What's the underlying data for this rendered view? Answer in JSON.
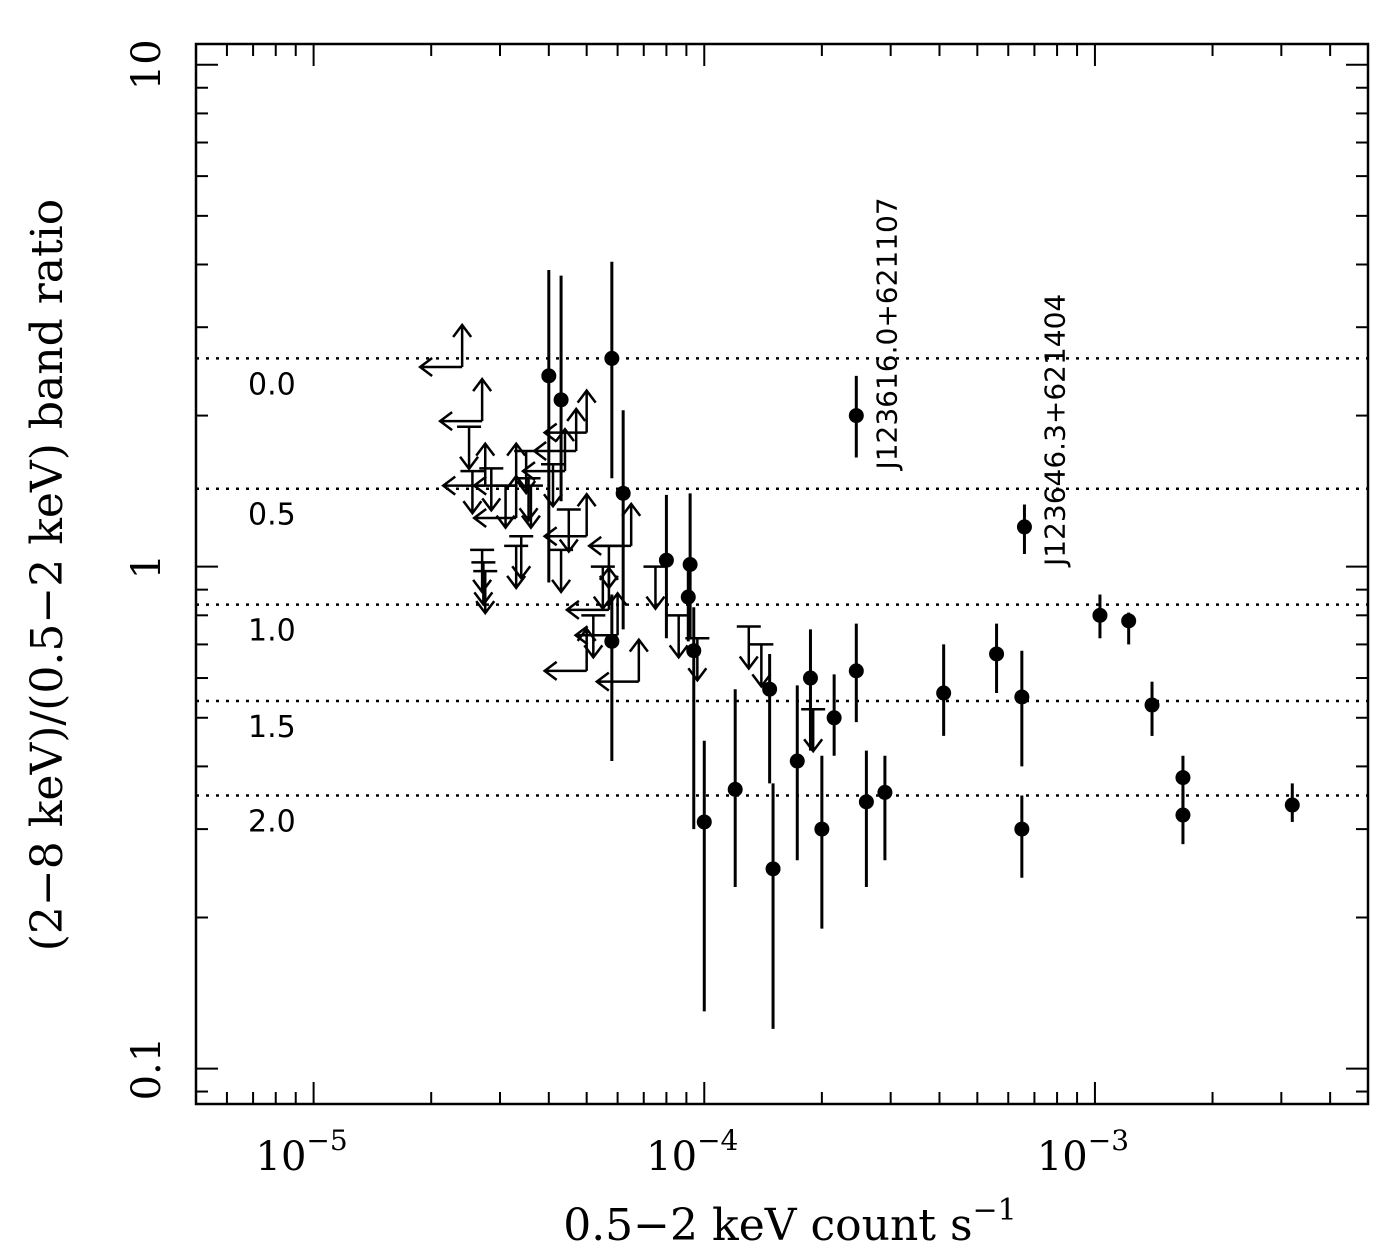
{
  "chart_data": {
    "type": "scatter",
    "title": "",
    "xlabel": "0.5−2 keV count s",
    "xlabel_sup": "−1",
    "ylabel": "(2−8 keV)/(0.5−2 keV) band ratio",
    "xscale": "log",
    "yscale": "log",
    "xlim": [
      5e-06,
      0.005
    ],
    "ylim": [
      0.085,
      11
    ],
    "x_ticks": [
      {
        "value": 1e-05,
        "base": "10",
        "exp": "−5"
      },
      {
        "value": 0.0001,
        "base": "10",
        "exp": "−4"
      },
      {
        "value": 0.001,
        "base": "10",
        "exp": "−3"
      }
    ],
    "y_ticks": [
      {
        "value": 0.1,
        "label": "0.1"
      },
      {
        "value": 1,
        "label": "1"
      },
      {
        "value": 10,
        "label": "10"
      }
    ],
    "photon_index_lines": [
      {
        "label": "0.0",
        "ratio": 2.6
      },
      {
        "label": "0.5",
        "ratio": 1.43
      },
      {
        "label": "1.0",
        "ratio": 0.84
      },
      {
        "label": "1.5",
        "ratio": 0.54
      },
      {
        "label": "2.0",
        "ratio": 0.35
      }
    ],
    "detections": [
      {
        "x": 4e-05,
        "y": 2.4,
        "ylo": 0.93,
        "yhi": 3.9
      },
      {
        "x": 4.3e-05,
        "y": 2.15,
        "ylo": 1.35,
        "yhi": 3.8
      },
      {
        "x": 5.8e-05,
        "y": 2.6,
        "ylo": 1.5,
        "yhi": 4.05
      },
      {
        "x": 6.2e-05,
        "y": 1.4,
        "ylo": 0.75,
        "yhi": 2.05
      },
      {
        "x": 8e-05,
        "y": 1.03,
        "ylo": 0.72,
        "yhi": 1.39
      },
      {
        "x": 9.2e-05,
        "y": 1.01,
        "ylo": 0.72,
        "yhi": 1.4
      },
      {
        "x": 9.1e-05,
        "y": 0.87,
        "ylo": 0.71,
        "yhi": 0.98
      },
      {
        "x": 5.8e-05,
        "y": 0.71,
        "ylo": 0.41,
        "yhi": 0.88
      },
      {
        "x": 9.4e-05,
        "y": 0.68,
        "ylo": 0.3,
        "yhi": 0.83
      },
      {
        "x": 0.0001,
        "y": 0.31,
        "ylo": 0.13,
        "yhi": 0.45
      },
      {
        "x": 0.00012,
        "y": 0.36,
        "ylo": 0.23,
        "yhi": 0.57
      },
      {
        "x": 0.000147,
        "y": 0.57,
        "ylo": 0.37,
        "yhi": 0.67
      },
      {
        "x": 0.00015,
        "y": 0.25,
        "ylo": 0.12,
        "yhi": 0.37
      },
      {
        "x": 0.000173,
        "y": 0.41,
        "ylo": 0.26,
        "yhi": 0.58
      },
      {
        "x": 0.000187,
        "y": 0.6,
        "ylo": 0.43,
        "yhi": 0.75
      },
      {
        "x": 0.0002,
        "y": 0.3,
        "ylo": 0.19,
        "yhi": 0.42
      },
      {
        "x": 0.000215,
        "y": 0.5,
        "ylo": 0.42,
        "yhi": 0.61
      },
      {
        "x": 0.000245,
        "y": 0.62,
        "ylo": 0.49,
        "yhi": 0.77
      },
      {
        "x": 0.00026,
        "y": 0.34,
        "ylo": 0.23,
        "yhi": 0.43
      },
      {
        "x": 0.00029,
        "y": 0.355,
        "ylo": 0.26,
        "yhi": 0.42
      },
      {
        "x": 0.00041,
        "y": 0.56,
        "ylo": 0.46,
        "yhi": 0.7
      },
      {
        "x": 0.00056,
        "y": 0.67,
        "ylo": 0.56,
        "yhi": 0.77
      },
      {
        "x": 0.00065,
        "y": 0.55,
        "ylo": 0.4,
        "yhi": 0.68
      },
      {
        "x": 0.00065,
        "y": 0.3,
        "ylo": 0.24,
        "yhi": 0.35
      },
      {
        "x": 0.00103,
        "y": 0.8,
        "ylo": 0.72,
        "yhi": 0.88
      },
      {
        "x": 0.00122,
        "y": 0.78,
        "ylo": 0.7,
        "yhi": 0.81
      },
      {
        "x": 0.0014,
        "y": 0.53,
        "ylo": 0.46,
        "yhi": 0.59
      },
      {
        "x": 0.00168,
        "y": 0.38,
        "ylo": 0.33,
        "yhi": 0.42
      },
      {
        "x": 0.00168,
        "y": 0.32,
        "ylo": 0.28,
        "yhi": 0.36
      },
      {
        "x": 0.0032,
        "y": 0.335,
        "ylo": 0.31,
        "yhi": 0.37
      },
      {
        "x": 0.000245,
        "y": 2.0,
        "ylo": 1.65,
        "yhi": 2.4,
        "label": "J123616.0+621107"
      },
      {
        "x": 0.00066,
        "y": 1.2,
        "ylo": 1.06,
        "yhi": 1.33,
        "label": "J123646.3+621404"
      }
    ],
    "upper_limits": [
      {
        "x": 2.5e-05,
        "y": 1.9
      },
      {
        "x": 2.55e-05,
        "y": 1.55
      },
      {
        "x": 2.7e-05,
        "y": 1.08
      },
      {
        "x": 2.72e-05,
        "y": 1.02
      },
      {
        "x": 2.75e-05,
        "y": 0.98
      },
      {
        "x": 2.85e-05,
        "y": 1.57
      },
      {
        "x": 3.1e-05,
        "y": 1.45
      },
      {
        "x": 3.3e-05,
        "y": 1.1
      },
      {
        "x": 3.4e-05,
        "y": 1.15
      },
      {
        "x": 3.5e-05,
        "y": 1.7
      },
      {
        "x": 3.55e-05,
        "y": 1.5
      },
      {
        "x": 3.6e-05,
        "y": 1.45
      },
      {
        "x": 4.1e-05,
        "y": 1.6
      },
      {
        "x": 4.3e-05,
        "y": 1.08
      },
      {
        "x": 4.5e-05,
        "y": 1.3
      },
      {
        "x": 5.2e-05,
        "y": 0.8
      },
      {
        "x": 5.5e-05,
        "y": 1.0
      },
      {
        "x": 5.7e-05,
        "y": 1.1
      },
      {
        "x": 7.5e-05,
        "y": 1.0
      },
      {
        "x": 8.6e-05,
        "y": 0.8
      },
      {
        "x": 9.6e-05,
        "y": 0.72
      },
      {
        "x": 0.00013,
        "y": 0.76
      },
      {
        "x": 0.00014,
        "y": 0.7
      },
      {
        "x": 0.00019,
        "y": 0.52
      }
    ],
    "corner_limits": [
      {
        "x": 2.4e-05,
        "y": 2.5
      },
      {
        "x": 2.7e-05,
        "y": 1.95
      },
      {
        "x": 2.75e-05,
        "y": 1.45
      },
      {
        "x": 3.3e-05,
        "y": 1.45
      },
      {
        "x": 4.4e-05,
        "y": 1.55
      },
      {
        "x": 4.7e-05,
        "y": 1.7
      },
      {
        "x": 5e-05,
        "y": 1.85
      },
      {
        "x": 5e-05,
        "y": 1.15
      },
      {
        "x": 6.5e-05,
        "y": 1.1
      },
      {
        "x": 5.7e-05,
        "y": 0.82
      },
      {
        "x": 6e-05,
        "y": 0.73
      },
      {
        "x": 5e-05,
        "y": 0.62
      },
      {
        "x": 6.8e-05,
        "y": 0.59
      },
      {
        "x": 3.3e-05,
        "y": 1.25
      }
    ]
  }
}
